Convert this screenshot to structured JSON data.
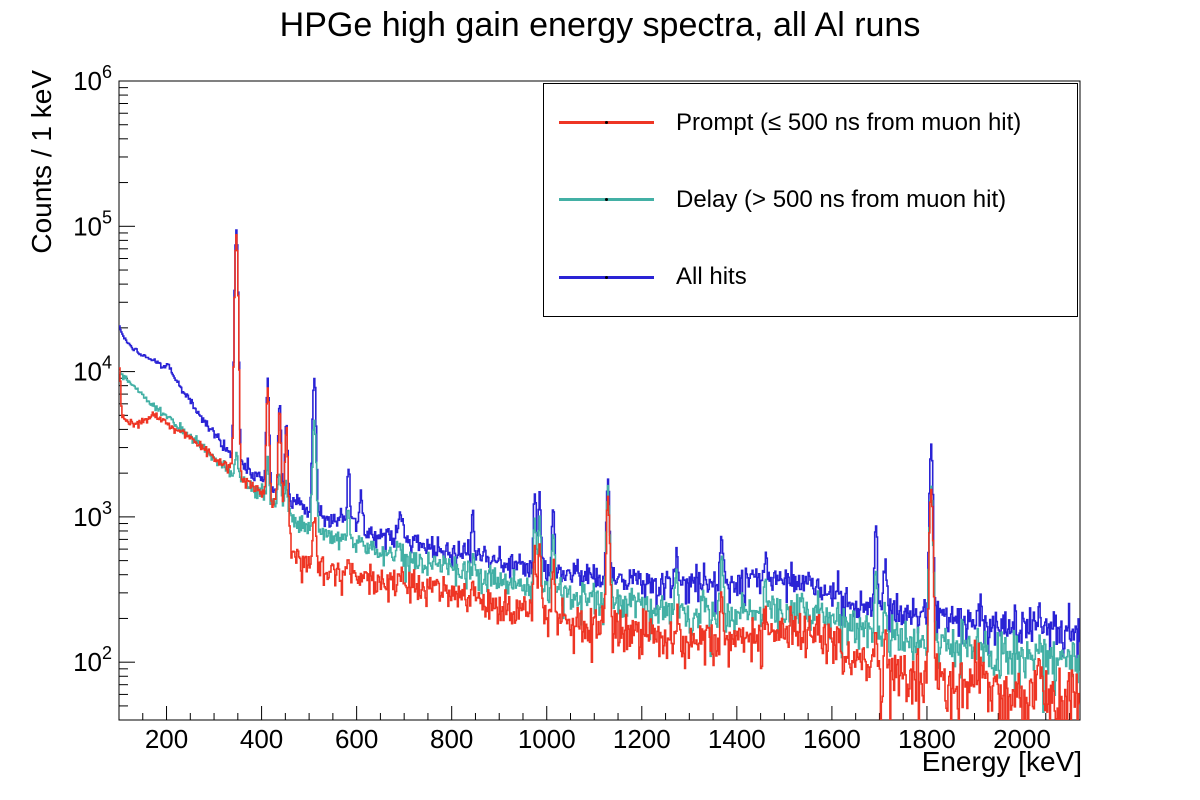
{
  "chart_data": {
    "type": "line",
    "title": "HPGe high gain energy spectra, all Al runs",
    "xlabel": "Energy [keV]",
    "ylabel": "Counts / 1 keV",
    "x_range": [
      100,
      2122
    ],
    "y_range": [
      40,
      1000000
    ],
    "y_scale": "log",
    "grid": false,
    "x_ticks_major": [
      200,
      400,
      600,
      800,
      1000,
      1200,
      1400,
      1600,
      1800,
      2000
    ],
    "x_minor_step": 50,
    "y_ticks_major_exponents": [
      2,
      3,
      4,
      5,
      6
    ],
    "legend_position": "top-right",
    "bin_kev": 2,
    "noise_k": 2.2,
    "draw_order": [
      2,
      1,
      0
    ],
    "series": [
      {
        "name": "Prompt (≤ 500 ns from muon hit)",
        "color": "#ee3524",
        "continuum": [
          [
            100,
            6300
          ],
          [
            107,
            4900
          ],
          [
            116,
            4550
          ],
          [
            130,
            4420
          ],
          [
            144,
            4430
          ],
          [
            157,
            4620
          ],
          [
            168,
            4900
          ],
          [
            176,
            4950
          ],
          [
            186,
            4780
          ],
          [
            196,
            4520
          ],
          [
            208,
            4230
          ],
          [
            222,
            3950
          ],
          [
            242,
            3620
          ],
          [
            262,
            3280
          ],
          [
            282,
            2920
          ],
          [
            302,
            2580
          ],
          [
            322,
            2280
          ],
          [
            342,
            2020
          ],
          [
            362,
            1800
          ],
          [
            382,
            1600
          ],
          [
            402,
            1430
          ],
          [
            422,
            1290
          ],
          [
            442,
            1170
          ],
          [
            456,
            1090
          ],
          [
            463,
            560
          ],
          [
            478,
            505
          ],
          [
            495,
            475
          ],
          [
            515,
            455
          ],
          [
            545,
            430
          ],
          [
            575,
            410
          ],
          [
            605,
            390
          ],
          [
            645,
            364
          ],
          [
            685,
            342
          ],
          [
            725,
            322
          ],
          [
            765,
            303
          ],
          [
            805,
            286
          ],
          [
            855,
            265
          ],
          [
            905,
            245
          ],
          [
            955,
            227
          ],
          [
            1005,
            210
          ],
          [
            1065,
            193
          ],
          [
            1125,
            179
          ],
          [
            1185,
            168
          ],
          [
            1245,
            148
          ],
          [
            1305,
            138
          ],
          [
            1365,
            140
          ],
          [
            1425,
            152
          ],
          [
            1485,
            165
          ],
          [
            1535,
            163
          ],
          [
            1565,
            155
          ],
          [
            1590,
            136
          ],
          [
            1615,
            113
          ],
          [
            1645,
            98
          ],
          [
            1685,
            89
          ],
          [
            1735,
            83
          ],
          [
            1785,
            78
          ],
          [
            1845,
            73
          ],
          [
            1905,
            68
          ],
          [
            1965,
            63
          ],
          [
            2025,
            59
          ],
          [
            2075,
            56
          ],
          [
            2122,
            53
          ]
        ],
        "peaks": [
          [
            101,
            10500,
            2
          ],
          [
            347,
            87000,
            2.8
          ],
          [
            413,
            7800,
            2.5
          ],
          [
            438,
            5300,
            2.5
          ],
          [
            452,
            3900,
            2.5
          ],
          [
            511,
            1050,
            3
          ],
          [
            583,
            520,
            2.5
          ],
          [
            609,
            380,
            2.5
          ],
          [
            693,
            360,
            7
          ],
          [
            787,
            260,
            2.5
          ],
          [
            844,
            400,
            2.5
          ],
          [
            869,
            240,
            2.5
          ],
          [
            975,
            640,
            2.5
          ],
          [
            985,
            600,
            2.5
          ],
          [
            1014,
            480,
            2.5
          ],
          [
            1129,
            1450,
            2.8
          ],
          [
            1273,
            230,
            2.5
          ],
          [
            1332,
            160,
            2.5
          ],
          [
            1368,
            300,
            2.5
          ],
          [
            1461,
            210,
            2.5
          ],
          [
            1612,
            140,
            2.5
          ],
          [
            1693,
            200,
            2.5
          ],
          [
            1712,
            150,
            2.5
          ],
          [
            1809,
            1500,
            3
          ],
          [
            1912,
            100,
            5
          ],
          [
            2037,
            105,
            5
          ]
        ]
      },
      {
        "name": "Delay (> 500 ns from muon hit)",
        "color": "#43b0a5",
        "continuum": [
          [
            100,
            10100
          ],
          [
            115,
            8950
          ],
          [
            130,
            7950
          ],
          [
            145,
            7150
          ],
          [
            160,
            6450
          ],
          [
            175,
            5850
          ],
          [
            190,
            5300
          ],
          [
            205,
            4750
          ],
          [
            220,
            4250
          ],
          [
            240,
            3780
          ],
          [
            260,
            3350
          ],
          [
            280,
            2950
          ],
          [
            300,
            2580
          ],
          [
            320,
            2260
          ],
          [
            340,
            2000
          ],
          [
            360,
            1780
          ],
          [
            380,
            1590
          ],
          [
            400,
            1420
          ],
          [
            420,
            1280
          ],
          [
            440,
            1160
          ],
          [
            458,
            1060
          ],
          [
            472,
            960
          ],
          [
            490,
            880
          ],
          [
            515,
            810
          ],
          [
            545,
            745
          ],
          [
            575,
            690
          ],
          [
            605,
            640
          ],
          [
            645,
            585
          ],
          [
            685,
            540
          ],
          [
            725,
            500
          ],
          [
            765,
            465
          ],
          [
            805,
            432
          ],
          [
            855,
            398
          ],
          [
            905,
            365
          ],
          [
            955,
            338
          ],
          [
            1005,
            312
          ],
          [
            1065,
            290
          ],
          [
            1125,
            270
          ],
          [
            1185,
            254
          ],
          [
            1245,
            225
          ],
          [
            1305,
            210
          ],
          [
            1365,
            205
          ],
          [
            1425,
            215
          ],
          [
            1485,
            230
          ],
          [
            1535,
            228
          ],
          [
            1565,
            220
          ],
          [
            1590,
            200
          ],
          [
            1615,
            180
          ],
          [
            1645,
            165
          ],
          [
            1685,
            155
          ],
          [
            1735,
            147
          ],
          [
            1785,
            140
          ],
          [
            1845,
            131
          ],
          [
            1905,
            122
          ],
          [
            1965,
            114
          ],
          [
            2025,
            107
          ],
          [
            2075,
            100
          ],
          [
            2122,
            95
          ]
        ],
        "peaks": [
          [
            347,
            2700,
            2.8
          ],
          [
            413,
            2400,
            2.5
          ],
          [
            438,
            2000,
            2.5
          ],
          [
            452,
            1800,
            2.5
          ],
          [
            511,
            4600,
            3
          ],
          [
            583,
            1150,
            2.5
          ],
          [
            609,
            700,
            2.5
          ],
          [
            693,
            600,
            7
          ],
          [
            787,
            380,
            2.5
          ],
          [
            844,
            560,
            2.5
          ],
          [
            869,
            380,
            2.5
          ],
          [
            975,
            1000,
            2.5
          ],
          [
            985,
            950,
            2.5
          ],
          [
            1014,
            780,
            2.5
          ],
          [
            1129,
            1550,
            2.8
          ],
          [
            1273,
            420,
            2.5
          ],
          [
            1332,
            280,
            2.5
          ],
          [
            1368,
            500,
            2.5
          ],
          [
            1461,
            330,
            2.5
          ],
          [
            1612,
            240,
            2.5
          ],
          [
            1693,
            430,
            2.5
          ],
          [
            1712,
            280,
            2.5
          ],
          [
            1809,
            1600,
            3
          ],
          [
            1912,
            130,
            5
          ],
          [
            2037,
            120,
            5
          ]
        ]
      },
      {
        "name": "All hits",
        "color": "#2a23d5",
        "continuum": [
          [
            100,
            21000
          ],
          [
            112,
            16800
          ],
          [
            125,
            14800
          ],
          [
            140,
            13400
          ],
          [
            155,
            12600
          ],
          [
            170,
            12000
          ],
          [
            185,
            11400
          ],
          [
            200,
            10500
          ],
          [
            212,
            9500
          ],
          [
            228,
            7900
          ],
          [
            245,
            6600
          ],
          [
            262,
            5500
          ],
          [
            280,
            4600
          ],
          [
            298,
            3880
          ],
          [
            315,
            3300
          ],
          [
            332,
            2820
          ],
          [
            350,
            2430
          ],
          [
            370,
            2130
          ],
          [
            395,
            1880
          ],
          [
            420,
            1560
          ],
          [
            445,
            1380
          ],
          [
            470,
            1220
          ],
          [
            495,
            1110
          ],
          [
            520,
            1030
          ],
          [
            550,
            955
          ],
          [
            580,
            885
          ],
          [
            610,
            830
          ],
          [
            650,
            760
          ],
          [
            690,
            700
          ],
          [
            730,
            650
          ],
          [
            770,
            605
          ],
          [
            810,
            562
          ],
          [
            855,
            520
          ],
          [
            900,
            480
          ],
          [
            950,
            452
          ],
          [
            1000,
            428
          ],
          [
            1060,
            402
          ],
          [
            1120,
            380
          ],
          [
            1180,
            362
          ],
          [
            1240,
            350
          ],
          [
            1300,
            344
          ],
          [
            1360,
            347
          ],
          [
            1420,
            354
          ],
          [
            1480,
            362
          ],
          [
            1530,
            360
          ],
          [
            1560,
            347
          ],
          [
            1585,
            312
          ],
          [
            1610,
            276
          ],
          [
            1640,
            252
          ],
          [
            1680,
            236
          ],
          [
            1730,
            223
          ],
          [
            1780,
            213
          ],
          [
            1840,
            201
          ],
          [
            1900,
            189
          ],
          [
            1960,
            179
          ],
          [
            2020,
            170
          ],
          [
            2070,
            164
          ],
          [
            2122,
            158
          ]
        ],
        "peaks": [
          [
            136,
            14200,
            2.5
          ],
          [
            204,
            11200,
            3
          ],
          [
            347,
            95000,
            2.8
          ],
          [
            413,
            8600,
            2.5
          ],
          [
            438,
            6000,
            2.5
          ],
          [
            452,
            4400,
            2.5
          ],
          [
            511,
            9200,
            3
          ],
          [
            568,
            1150,
            2.5
          ],
          [
            583,
            2300,
            2.5
          ],
          [
            609,
            1450,
            2.5
          ],
          [
            693,
            950,
            7
          ],
          [
            787,
            600,
            2.5
          ],
          [
            844,
            1050,
            2.5
          ],
          [
            869,
            620,
            2.5
          ],
          [
            975,
            1500,
            2.5
          ],
          [
            985,
            1450,
            2.5
          ],
          [
            1014,
            1200,
            2.5
          ],
          [
            1129,
            1900,
            2.8
          ],
          [
            1273,
            600,
            2.5
          ],
          [
            1332,
            430,
            2.5
          ],
          [
            1368,
            800,
            2.5
          ],
          [
            1461,
            520,
            2.5
          ],
          [
            1612,
            380,
            2.5
          ],
          [
            1693,
            900,
            2.5
          ],
          [
            1712,
            500,
            2.5
          ],
          [
            1792,
            260,
            2.5
          ],
          [
            1809,
            3000,
            3
          ],
          [
            1912,
            240,
            5
          ],
          [
            2037,
            220,
            5
          ]
        ]
      }
    ]
  }
}
